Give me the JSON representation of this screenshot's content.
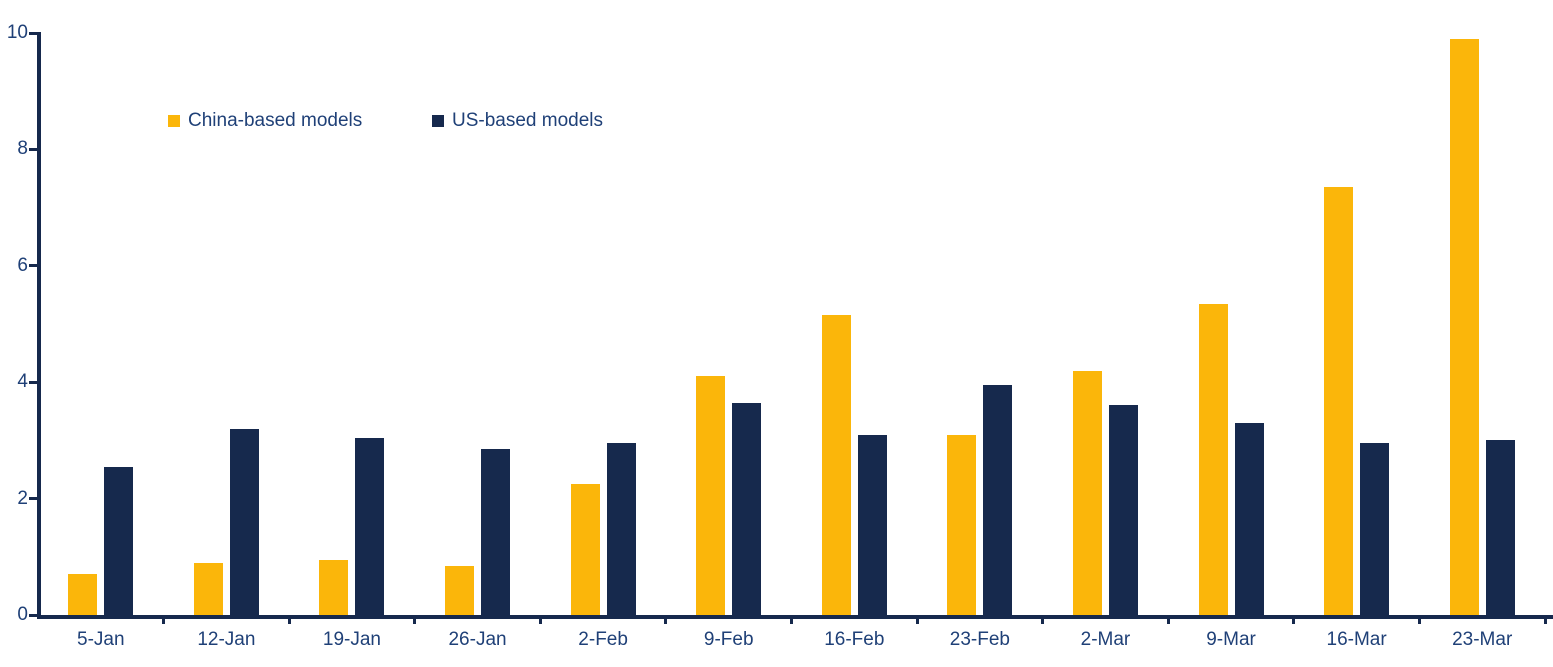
{
  "chart_data": {
    "type": "bar",
    "title": "",
    "xlabel": "",
    "ylabel": "",
    "ylim": [
      0,
      10
    ],
    "yticks": [
      0,
      2,
      4,
      6,
      8,
      10
    ],
    "grid": false,
    "legend_position": "top-left-inside",
    "categories": [
      "5-Jan",
      "12-Jan",
      "19-Jan",
      "26-Jan",
      "2-Feb",
      "9-Feb",
      "16-Feb",
      "23-Feb",
      "2-Mar",
      "9-Mar",
      "16-Mar",
      "23-Mar"
    ],
    "series": [
      {
        "name": "China-based models",
        "color": "#FBB60A",
        "values": [
          0.7,
          0.9,
          0.95,
          0.85,
          2.25,
          4.1,
          5.15,
          3.1,
          4.2,
          5.35,
          7.35,
          9.9
        ]
      },
      {
        "name": "US-based models",
        "color": "#16294D",
        "values": [
          2.55,
          3.2,
          3.05,
          2.85,
          2.95,
          3.65,
          3.1,
          3.95,
          3.6,
          3.3,
          2.95,
          3.0
        ]
      }
    ]
  },
  "colors": {
    "axis": "#16294D",
    "tick_label": "#1F4077",
    "background": "#FFFFFF"
  }
}
